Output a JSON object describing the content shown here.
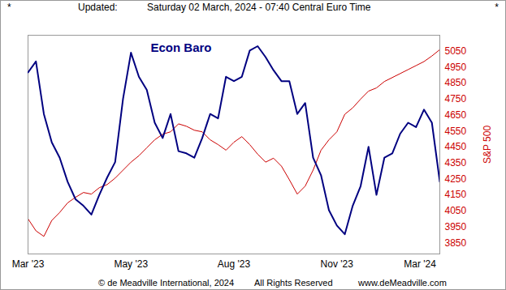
{
  "header": {
    "left": "*",
    "updated": "Updated:",
    "timestamp": "Saturday 02 March, 2024 - 07:40 Central Euro Time",
    "right": "*"
  },
  "footer": {
    "copyright": "© de Meadville International, 2024",
    "rights": "All Rights Reserved",
    "site": "www.deMeadville.com"
  },
  "chart_data": {
    "type": "line",
    "title": "Econ Baro",
    "y2_label": "S&P 500",
    "x": [
      0,
      1,
      2,
      3,
      4,
      5,
      6,
      7,
      8,
      9,
      10,
      11,
      12,
      13,
      14,
      15,
      16,
      17,
      18,
      19,
      20,
      21,
      22,
      23,
      24,
      25,
      26,
      27,
      28,
      29,
      30,
      31,
      32,
      33,
      34,
      35,
      36,
      37,
      38,
      39,
      40,
      41,
      42,
      43,
      44,
      45,
      46,
      47,
      48,
      49,
      50,
      51,
      52
    ],
    "xlim": [
      0,
      52
    ],
    "xticks": [
      {
        "value": 0,
        "label": "Mar '23"
      },
      {
        "value": 13,
        "label": "May '23"
      },
      {
        "value": 26,
        "label": "Aug '23"
      },
      {
        "value": 39,
        "label": "Nov '23"
      },
      {
        "value": 49.5,
        "label": "Mar '24"
      }
    ],
    "ylim": [
      0,
      100
    ],
    "yticks": [],
    "y2lim": [
      3780,
      5150
    ],
    "y2ticks": [
      3850,
      3950,
      4050,
      4150,
      4250,
      4350,
      4450,
      4550,
      4650,
      4750,
      4850,
      4950,
      5050
    ],
    "grid": false,
    "series": [
      {
        "name": "Econ Baro",
        "color": "#000080",
        "values": [
          83,
          88,
          64,
          51,
          44,
          33,
          25,
          22,
          18,
          27,
          35,
          42,
          71,
          92,
          81,
          75,
          60,
          53,
          64,
          47,
          46,
          44,
          53,
          64,
          62,
          81,
          79,
          81,
          93,
          95,
          90,
          84,
          79,
          79,
          64,
          69,
          44,
          36,
          20,
          13,
          9,
          22,
          31,
          49,
          27,
          44,
          46,
          55,
          60,
          58,
          66,
          60,
          33
        ]
      },
      {
        "name": "S&P 500",
        "color": "#cc0000",
        "axis": "y2",
        "values": [
          4000,
          3925,
          3890,
          3990,
          4040,
          4100,
          4135,
          4165,
          4155,
          4195,
          4215,
          4255,
          4305,
          4355,
          4395,
          4445,
          4495,
          4530,
          4545,
          4595,
          4580,
          4555,
          4545,
          4495,
          4465,
          4430,
          4480,
          4515,
          4465,
          4405,
          4355,
          4380,
          4330,
          4245,
          4155,
          4205,
          4305,
          4430,
          4495,
          4545,
          4655,
          4695,
          4750,
          4800,
          4820,
          4860,
          4885,
          4910,
          4935,
          4960,
          4985,
          5020,
          5060
        ]
      }
    ]
  }
}
